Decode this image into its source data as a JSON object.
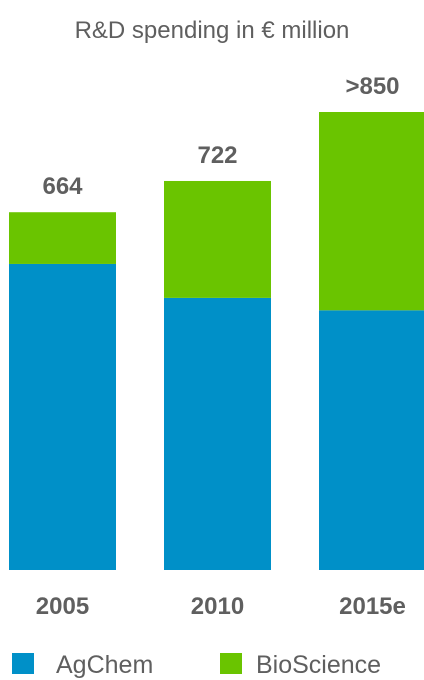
{
  "chart_data": {
    "type": "bar",
    "stacked": true,
    "title": "R&D spending in € million",
    "categories": [
      "2005",
      "2010",
      "2015e"
    ],
    "totals_labels": [
      "664",
      "722",
      ">850"
    ],
    "series": [
      {
        "name": "AgChem",
        "color": "#0090c8",
        "values": [
          568,
          505,
          482
        ]
      },
      {
        "name": "BioScience",
        "color": "#6ac400",
        "values": [
          96,
          217,
          368
        ]
      }
    ],
    "ylim": [
      0,
      850
    ],
    "legend_position": "bottom",
    "grid": false
  }
}
